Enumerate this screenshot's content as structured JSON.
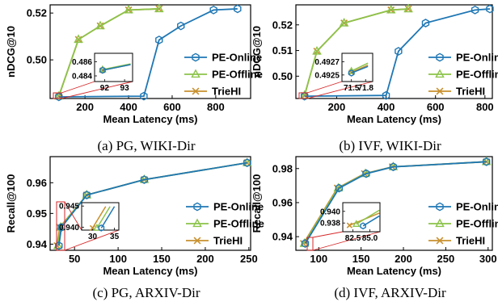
{
  "colors": {
    "PE-Online": "#1f77b4",
    "PE-Offline": "#8bc34a",
    "TrieHI": "#c8902e",
    "zoom_box": "#d62728"
  },
  "chart_data": [
    {
      "type": "line",
      "caption": "(a) PG, WIKI-Dir",
      "xlabel": "Mean Latency (ms)",
      "ylabel": "nDCG@10",
      "xlim": [
        40,
        960
      ],
      "ylim": [
        0.4835,
        0.5235
      ],
      "xticks": [
        200,
        400,
        600,
        800
      ],
      "yticks": [
        0.5,
        0.52
      ],
      "ytick_labels": [
        "0.50",
        "0.52"
      ],
      "xtick_labels": [
        "200",
        "400",
        "600",
        "800"
      ],
      "legend": "right",
      "series": [
        {
          "name": "PE-Online",
          "marker": "hexagon",
          "x": [
            80,
            470,
            540,
            640,
            790,
            900
          ],
          "y": [
            0.4842,
            0.4845,
            0.5085,
            0.5145,
            0.5213,
            0.5218
          ]
        },
        {
          "name": "PE-Offline",
          "marker": "triangle",
          "x": [
            80,
            170,
            270,
            400,
            540
          ],
          "y": [
            0.4845,
            0.5087,
            0.5145,
            0.5213,
            0.5218
          ]
        },
        {
          "name": "TrieHI",
          "marker": "x",
          "x": [
            80,
            170,
            270,
            400,
            540
          ],
          "y": [
            0.4845,
            0.5087,
            0.5145,
            0.5213,
            0.5218
          ]
        }
      ],
      "inset": {
        "xlim": [
          91.5,
          93.4
        ],
        "ylim": [
          0.4832,
          0.4872
        ],
        "xticks": [
          92,
          93
        ],
        "xtick_labels": [
          "92",
          "93"
        ],
        "yticks": [
          0.484,
          0.486
        ],
        "ytick_labels": [
          "0.484",
          "0.486"
        ],
        "series": [
          {
            "name": "PE-Online",
            "x": [
              91.9,
              93.3
            ],
            "y": [
              0.4848,
              0.4856
            ]
          },
          {
            "name": "PE-Offline",
            "x": [
              91.9,
              93.3
            ],
            "y": [
              0.4849,
              0.4857
            ]
          },
          {
            "name": "TrieHI",
            "x": [
              91.9,
              93.3
            ],
            "y": [
              0.4848,
              0.4856
            ]
          }
        ]
      }
    },
    {
      "type": "line",
      "caption": "(b) IVF, WIKI-Dir",
      "xlabel": "Mean Latency (ms)",
      "ylabel": "nDCG@10",
      "xlim": [
        35,
        830
      ],
      "ylim": [
        0.4913,
        0.5278
      ],
      "xticks": [
        200,
        400,
        600,
        800
      ],
      "yticks": [
        0.5,
        0.51,
        0.52
      ],
      "ytick_labels": [
        "0.50",
        "0.51",
        "0.52"
      ],
      "xtick_labels": [
        "200",
        "400",
        "600",
        "800"
      ],
      "legend": "right",
      "series": [
        {
          "name": "PE-Online",
          "marker": "hexagon",
          "x": [
            70,
            400,
            450,
            560,
            760,
            820
          ],
          "y": [
            0.4922,
            0.4925,
            0.5097,
            0.5207,
            0.5258,
            0.5262
          ]
        },
        {
          "name": "PE-Offline",
          "marker": "triangle",
          "x": [
            70,
            120,
            230,
            420,
            490
          ],
          "y": [
            0.4925,
            0.5097,
            0.5207,
            0.5258,
            0.5262
          ]
        },
        {
          "name": "TrieHI",
          "marker": "x",
          "x": [
            70,
            120,
            230,
            420,
            490
          ],
          "y": [
            0.4925,
            0.5097,
            0.5207,
            0.5258,
            0.5262
          ]
        }
      ],
      "inset": {
        "xlim": [
          71.3,
          71.95
        ],
        "ylim": [
          0.4924,
          0.49283
        ],
        "xticks": [
          71.5,
          71.8
        ],
        "xtick_labels": [
          "71.5",
          "71.8"
        ],
        "yticks": [
          0.4925,
          0.4927
        ],
        "ytick_labels": [
          "0.4925",
          "0.4927"
        ],
        "series": [
          {
            "name": "PE-Online",
            "x": [
              71.5,
              71.85
            ],
            "y": [
              0.49253,
              0.49263
            ]
          },
          {
            "name": "PE-Offline",
            "x": [
              71.5,
              71.85
            ],
            "y": [
              0.49256,
              0.49268
            ]
          },
          {
            "name": "TrieHI",
            "x": [
              71.5,
              71.85
            ],
            "y": [
              0.49254,
              0.49265
            ]
          }
        ]
      }
    },
    {
      "type": "line",
      "caption": "(c) PG, ARXIV-Dir",
      "xlabel": "Mean Latency (ms)",
      "ylabel": "Recall@100",
      "xlim": [
        22,
        252
      ],
      "ylim": [
        0.938,
        0.9685
      ],
      "xticks": [
        50,
        100,
        150,
        200,
        250
      ],
      "yticks": [
        0.94,
        0.95,
        0.96
      ],
      "ytick_labels": [
        "0.94",
        "0.95",
        "0.96"
      ],
      "xtick_labels": [
        "50",
        "100",
        "150",
        "200",
        "250"
      ],
      "legend": "right",
      "series": [
        {
          "name": "PE-Online",
          "marker": "hexagon",
          "x": [
            32,
            35,
            64,
            130,
            248
          ],
          "y": [
            0.9395,
            0.9455,
            0.956,
            0.961,
            0.9665
          ]
        },
        {
          "name": "PE-Offline",
          "marker": "triangle",
          "x": [
            31,
            34,
            64,
            130,
            248
          ],
          "y": [
            0.9395,
            0.9455,
            0.956,
            0.961,
            0.9665
          ]
        },
        {
          "name": "TrieHI",
          "marker": "x",
          "x": [
            30,
            33,
            64,
            130,
            248
          ],
          "y": [
            0.9395,
            0.9455,
            0.956,
            0.961,
            0.9665
          ]
        }
      ],
      "inset": {
        "xlim": [
          27.5,
          36
        ],
        "ylim": [
          0.9393,
          0.9458
        ],
        "xticks": [
          30,
          35
        ],
        "xtick_labels": [
          "30",
          "35"
        ],
        "yticks": [
          0.94,
          0.945
        ],
        "ytick_labels": [
          "0.940",
          "0.945"
        ],
        "series": [
          {
            "name": "PE-Online",
            "x": [
              32,
              35
            ],
            "y": [
              0.9398,
              0.9449
            ]
          },
          {
            "name": "PE-Offline",
            "x": [
              31,
              34
            ],
            "y": [
              0.9398,
              0.9449
            ]
          },
          {
            "name": "TrieHI",
            "x": [
              30,
              33
            ],
            "y": [
              0.9398,
              0.9449
            ]
          }
        ]
      }
    },
    {
      "type": "line",
      "caption": "(d) IVF, ARXIV-Dir",
      "xlabel": "Mean Latency (ms)",
      "ylabel": "Recall@100",
      "xlim": [
        73,
        305
      ],
      "ylim": [
        0.932,
        0.987
      ],
      "xticks": [
        100,
        150,
        200,
        250,
        300
      ],
      "yticks": [
        0.94,
        0.96,
        0.98
      ],
      "ytick_labels": [
        "0.94",
        "0.96",
        "0.98"
      ],
      "xtick_labels": [
        "100",
        "150",
        "200",
        "250",
        "300"
      ],
      "legend": "right",
      "series": [
        {
          "name": "PE-Online",
          "marker": "hexagon",
          "x": [
            84,
            124,
            156,
            188,
            298
          ],
          "y": [
            0.936,
            0.9685,
            0.977,
            0.981,
            0.984
          ]
        },
        {
          "name": "PE-Offline",
          "marker": "triangle",
          "x": [
            83,
            123,
            155,
            188,
            298
          ],
          "y": [
            0.936,
            0.9685,
            0.977,
            0.981,
            0.984
          ]
        },
        {
          "name": "TrieHI",
          "marker": "x",
          "x": [
            82,
            122,
            154,
            187,
            298
          ],
          "y": [
            0.936,
            0.9685,
            0.977,
            0.981,
            0.984
          ]
        }
      ],
      "inset": {
        "xlim": [
          81,
          86.5
        ],
        "ylim": [
          0.9365,
          0.9415
        ],
        "xticks": [
          82.5,
          85.0
        ],
        "xtick_labels": [
          "82.5",
          "85.0"
        ],
        "yticks": [
          0.938,
          0.94
        ],
        "ytick_labels": [
          "0.938",
          "0.940"
        ],
        "series": [
          {
            "name": "PE-Online",
            "x": [
              84,
              86.4
            ],
            "y": [
              0.9375,
              0.9392
            ]
          },
          {
            "name": "PE-Offline",
            "x": [
              83,
              86.4
            ],
            "y": [
              0.9378,
              0.9402
            ]
          },
          {
            "name": "TrieHI",
            "x": [
              82,
              86.4
            ],
            "y": [
              0.9376,
              0.9397
            ]
          }
        ]
      }
    }
  ]
}
